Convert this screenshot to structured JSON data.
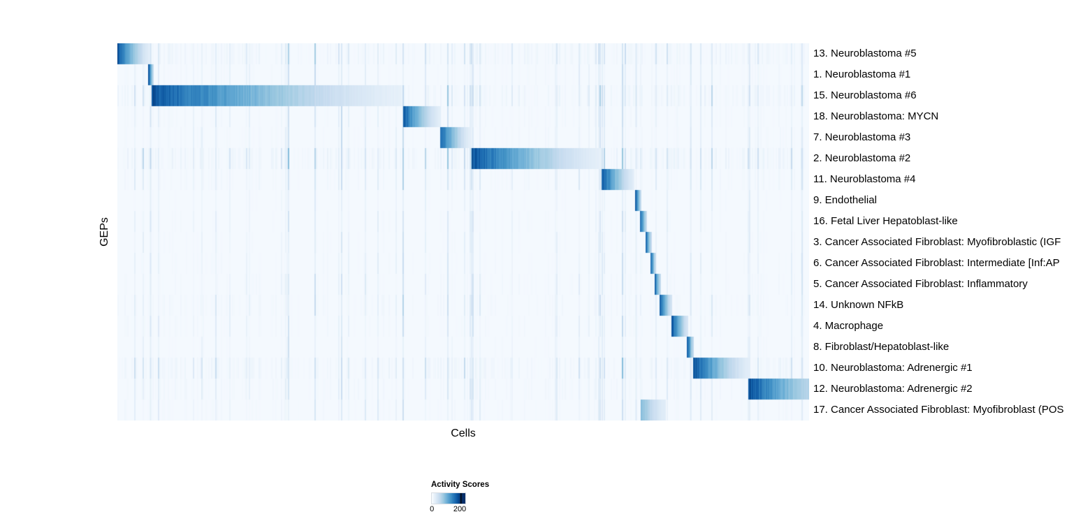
{
  "chart_data": {
    "type": "heatmap",
    "title": "",
    "xlabel": "Cells",
    "ylabel": "GEPs",
    "colormap": "Blues",
    "legend": {
      "title": "Activity Scores",
      "min": 0,
      "max": 200,
      "min_label": "0",
      "max_label": "200"
    },
    "colormap_stops": [
      [
        0,
        "#f7fbff"
      ],
      [
        0.13,
        "#deebf7"
      ],
      [
        0.26,
        "#c6dbef"
      ],
      [
        0.39,
        "#9ecae1"
      ],
      [
        0.52,
        "#6baed6"
      ],
      [
        0.65,
        "#4292c6"
      ],
      [
        0.78,
        "#2171b5"
      ],
      [
        0.9,
        "#08519c"
      ],
      [
        1,
        "#08306b"
      ]
    ],
    "rows": [
      {
        "label": "13. Neuroblastoma #5",
        "block_start": 0.0,
        "block_end": 0.047,
        "peak": 0.88,
        "floor": 0.12,
        "noise": 0.9
      },
      {
        "label": "1. Neuroblastoma #1",
        "block_start": 0.045,
        "block_end": 0.052,
        "peak": 0.85,
        "floor": 0.3,
        "noise": 0.5
      },
      {
        "label": "15. Neuroblastoma #6",
        "block_start": 0.05,
        "block_end": 0.411,
        "peak": 0.88,
        "floor": 0.1,
        "noise": 1.0
      },
      {
        "label": "18. Neuroblastoma: MYCN",
        "block_start": 0.414,
        "block_end": 0.467,
        "peak": 0.82,
        "floor": 0.12,
        "noise": 0.5
      },
      {
        "label": "7. Neuroblastoma #3",
        "block_start": 0.467,
        "block_end": 0.51,
        "peak": 0.82,
        "floor": 0.12,
        "noise": 0.5
      },
      {
        "label": "2. Neuroblastoma #2",
        "block_start": 0.513,
        "block_end": 0.7,
        "peak": 0.88,
        "floor": 0.1,
        "noise": 1.1
      },
      {
        "label": "11. Neuroblastoma #4",
        "block_start": 0.701,
        "block_end": 0.747,
        "peak": 0.85,
        "floor": 0.12,
        "noise": 0.6
      },
      {
        "label": "9. Endothelial",
        "block_start": 0.749,
        "block_end": 0.757,
        "peak": 0.82,
        "floor": 0.3,
        "noise": 0.35
      },
      {
        "label": "16. Fetal Liver Hepatoblast-like",
        "block_start": 0.756,
        "block_end": 0.765,
        "peak": 0.82,
        "floor": 0.3,
        "noise": 0.4
      },
      {
        "label": "3. Cancer Associated Fibroblast: Myofibroblastic (IGF",
        "block_start": 0.764,
        "block_end": 0.772,
        "peak": 0.82,
        "floor": 0.3,
        "noise": 0.4
      },
      {
        "label": "6. Cancer Associated Fibroblast: Intermediate [Inf:AP",
        "block_start": 0.771,
        "block_end": 0.778,
        "peak": 0.82,
        "floor": 0.3,
        "noise": 0.45
      },
      {
        "label": "5. Cancer Associated Fibroblast: Inflammatory",
        "block_start": 0.777,
        "block_end": 0.785,
        "peak": 0.82,
        "floor": 0.3,
        "noise": 0.5
      },
      {
        "label": "14. Unknown NFkB",
        "block_start": 0.784,
        "block_end": 0.802,
        "peak": 0.84,
        "floor": 0.2,
        "noise": 0.6
      },
      {
        "label": "4. Macrophage",
        "block_start": 0.802,
        "block_end": 0.825,
        "peak": 0.84,
        "floor": 0.2,
        "noise": 0.5
      },
      {
        "label": "8. Fibroblast/Hepatoblast-like",
        "block_start": 0.824,
        "block_end": 0.833,
        "peak": 0.82,
        "floor": 0.3,
        "noise": 0.4
      },
      {
        "label": "10. Neuroblastoma: Adrenergic #1",
        "block_start": 0.833,
        "block_end": 0.913,
        "peak": 0.9,
        "floor": 0.12,
        "noise": 0.9
      },
      {
        "label": "12. Neuroblastoma: Adrenergic #2",
        "block_start": 0.913,
        "block_end": 1.0,
        "peak": 0.9,
        "floor": 0.35,
        "noise": 0.6
      },
      {
        "label": "17. Cancer Associated Fibroblast: Myofibroblast (POS",
        "block_start": 0.757,
        "block_end": 0.792,
        "peak": 0.45,
        "floor": 0.25,
        "noise": 0.5
      }
    ],
    "boundary_columns": [
      {
        "x": 0.047,
        "v": 0.2
      },
      {
        "x": 0.513,
        "v": 0.22
      },
      {
        "x": 0.7,
        "v": 0.16
      },
      {
        "x": 0.749,
        "v": 0.15
      },
      {
        "x": 0.828,
        "v": 0.16
      },
      {
        "x": 0.913,
        "v": 0.16
      },
      {
        "x": 0.989,
        "v": 0.2
      }
    ]
  }
}
